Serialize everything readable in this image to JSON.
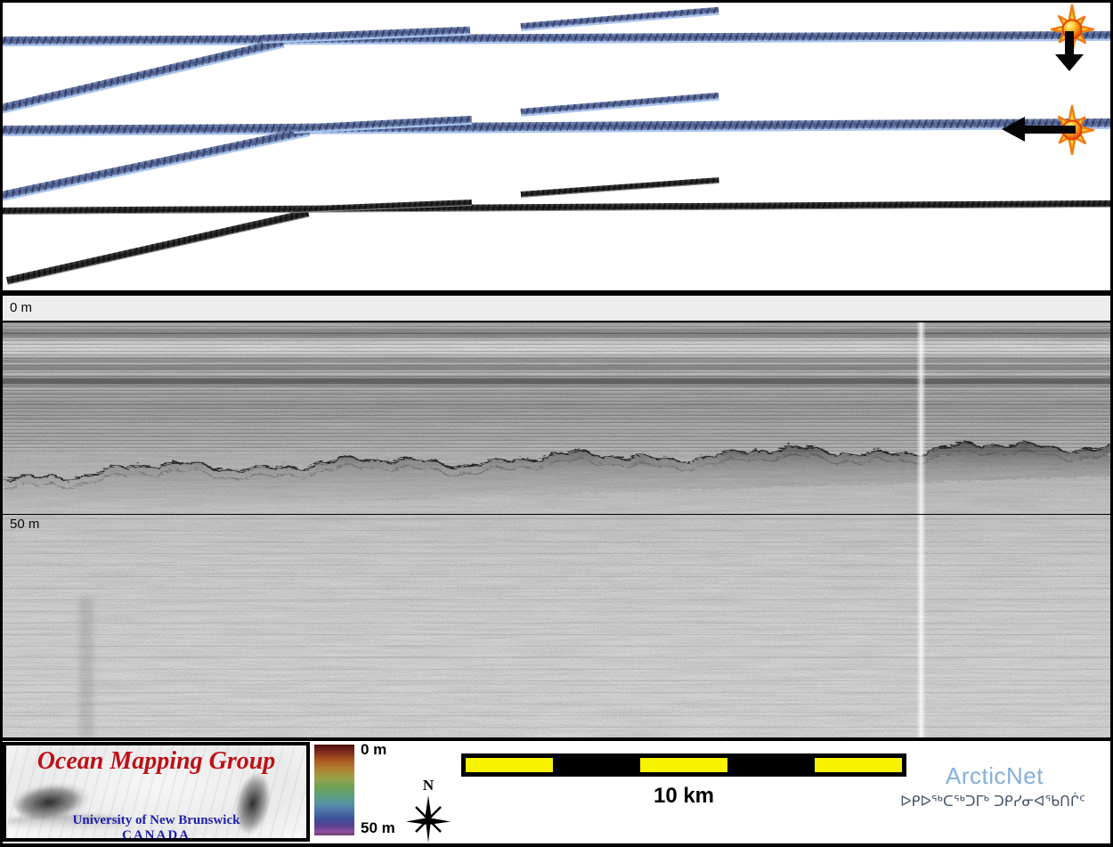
{
  "map_panel": {
    "markers": [
      {
        "icon": "starburst-icon",
        "arrow_direction": "down"
      },
      {
        "icon": "starburst-icon",
        "arrow_direction": "left"
      }
    ],
    "swath_blue_color": "#5a6b9c",
    "swath_dark_color": "#2e2e2e"
  },
  "profile_panel": {
    "top_label": "0 m",
    "mid_label": "50 m"
  },
  "legend": {
    "omg": {
      "title": "Ocean Mapping Group",
      "university": "University of New Brunswick",
      "country": "CANADA",
      "title_color": "#be1018",
      "text_color": "#2020a8"
    },
    "color_scale": {
      "top_label": "0 m",
      "bottom_label": "50 m"
    },
    "compass": {
      "label": "N"
    },
    "scale_bar": {
      "label": "10 km",
      "segment_yellow": "#f6f200",
      "segment_black": "#000000"
    },
    "arcticnet": {
      "name": "ArcticNet",
      "inuktitut": "ᐅᑭᐅᖅᑕᖅᑐᒥᒃ ᑐᑭᓯᓂᐊᖃᑎᒌᑦ",
      "name_color": "#84afdb",
      "inuktitut_color": "#46566c"
    }
  }
}
